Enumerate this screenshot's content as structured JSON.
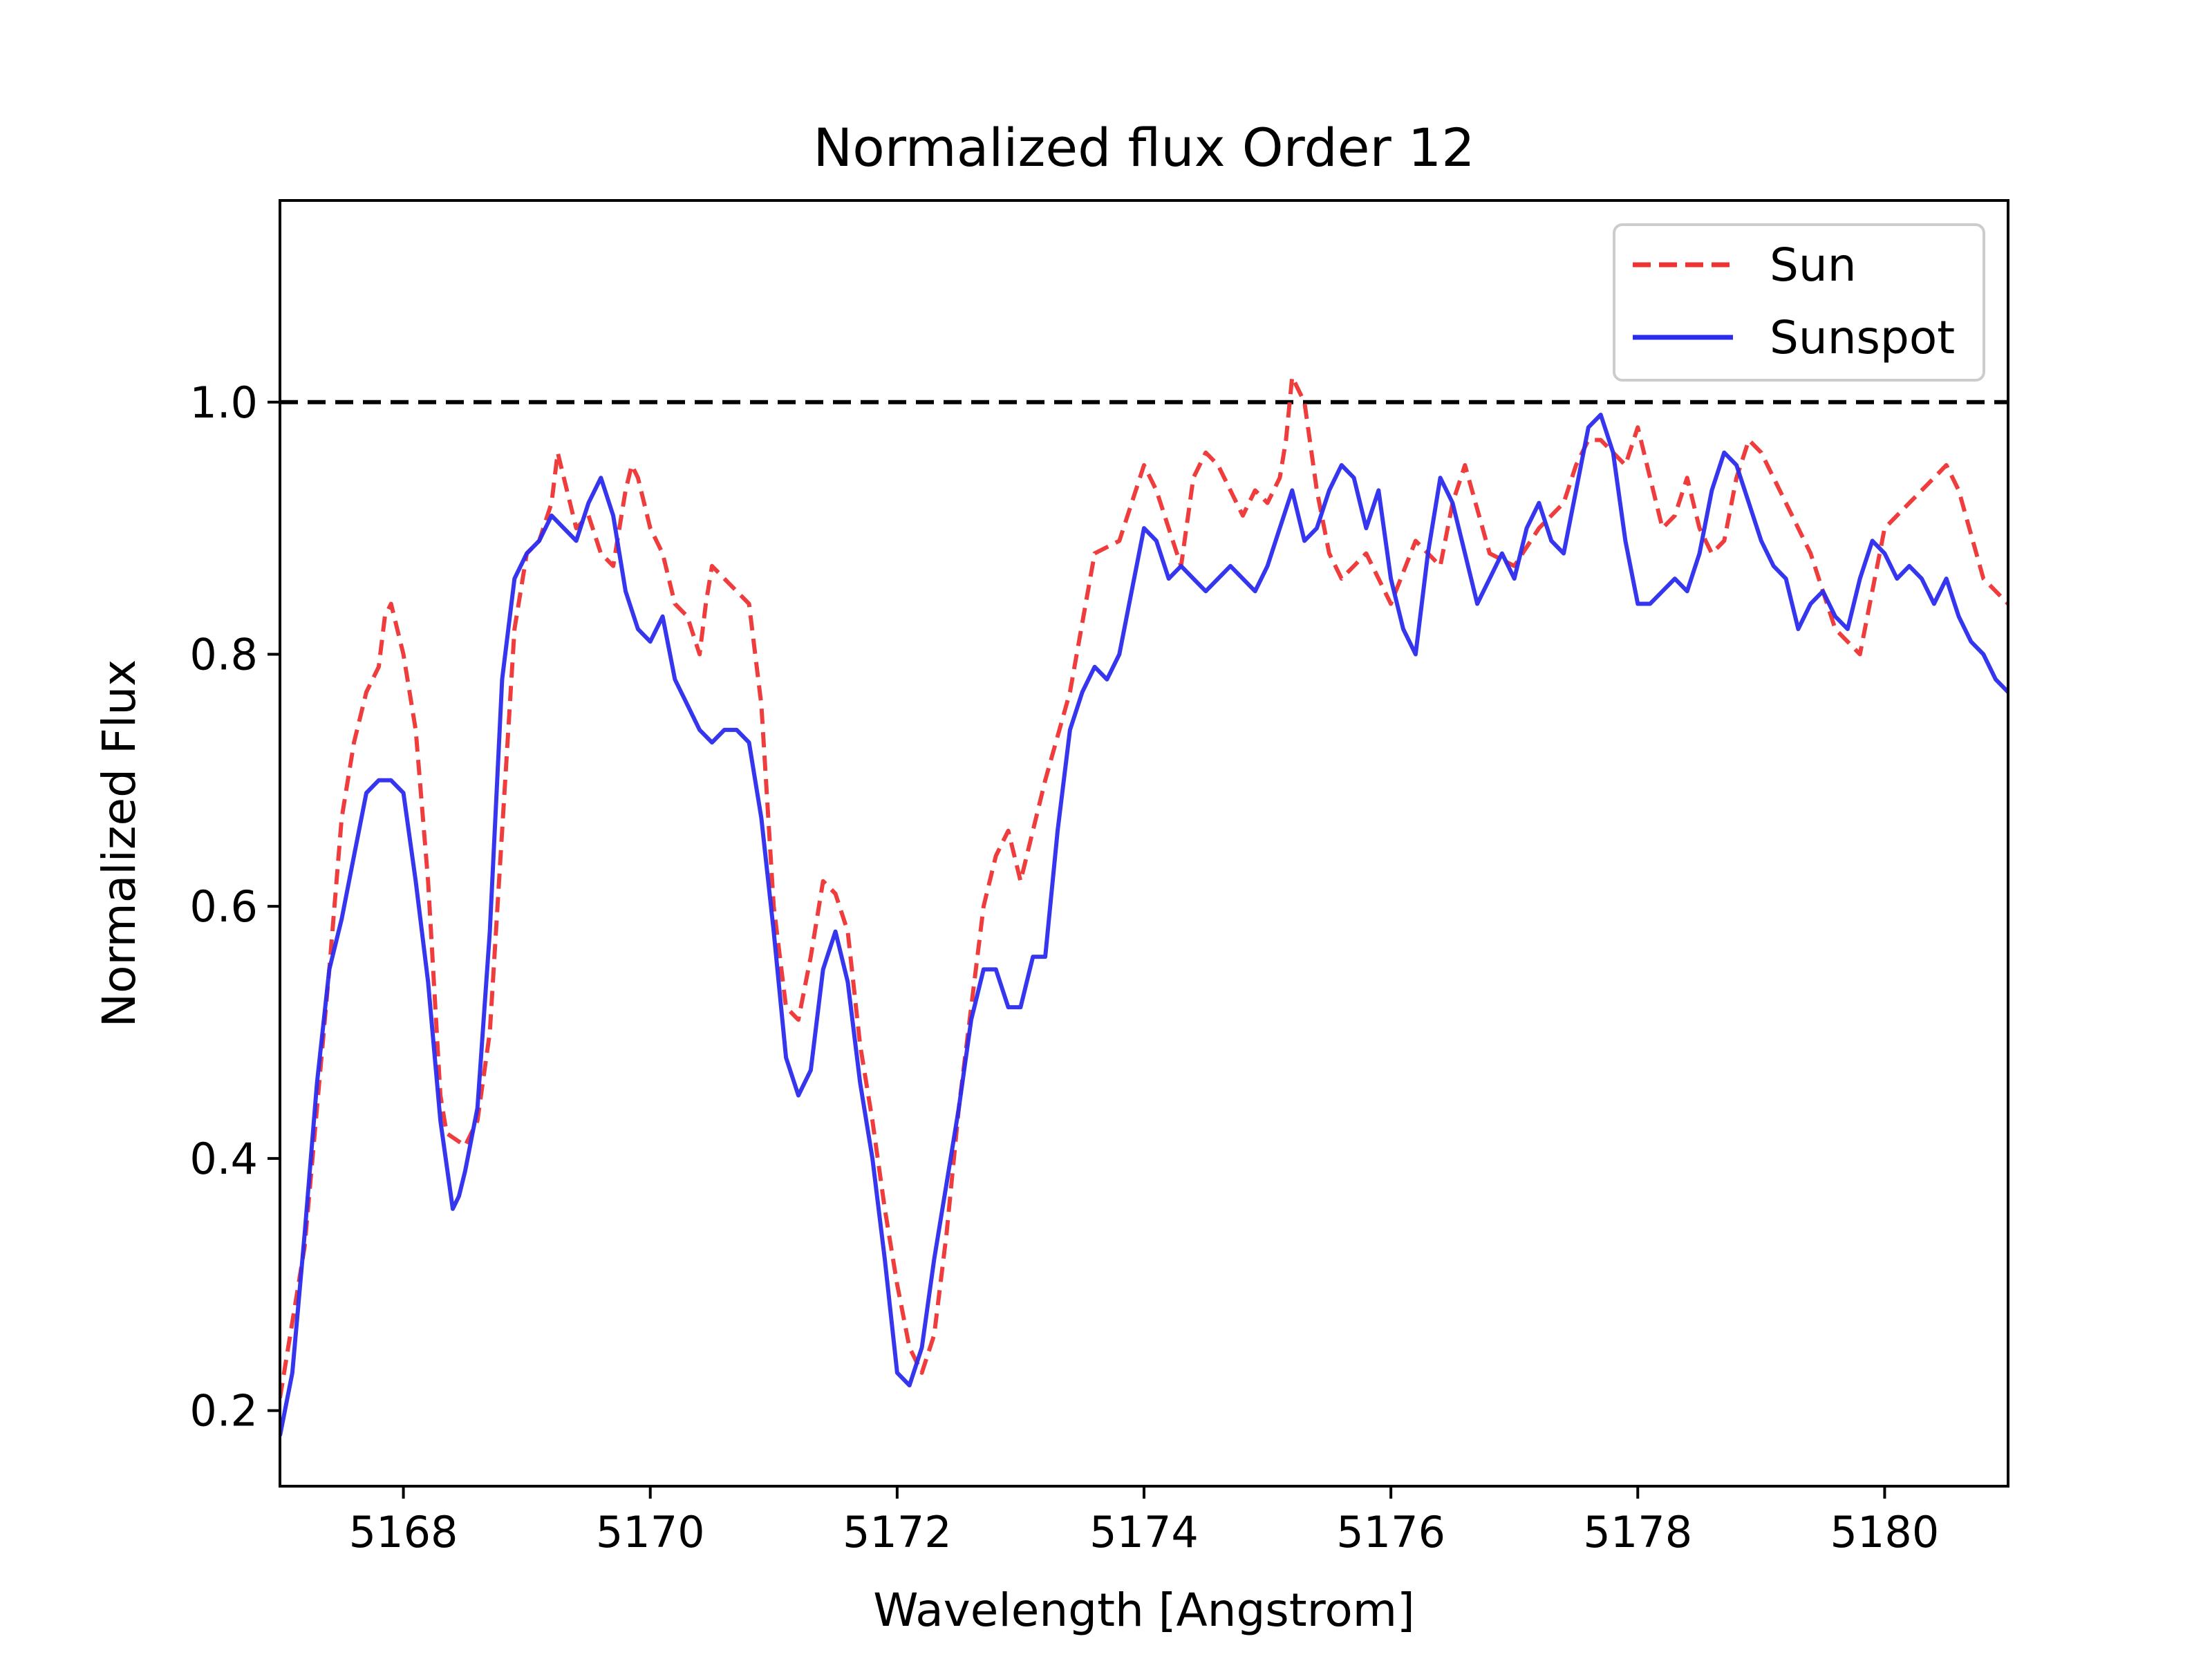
{
  "chart_data": {
    "type": "line",
    "title": "Normalized flux Order 12",
    "xlabel": "Wavelength [Angstrom]",
    "ylabel": "Normalized Flux",
    "xlim": [
      5167.0,
      5181.0
    ],
    "ylim": [
      0.14,
      1.16
    ],
    "xticks": [
      5168,
      5170,
      5172,
      5174,
      5176,
      5178,
      5180
    ],
    "yticks": [
      0.2,
      0.4,
      0.6,
      0.8,
      1.0
    ],
    "xtick_labels": [
      "5168",
      "5170",
      "5172",
      "5174",
      "5176",
      "5178",
      "5180"
    ],
    "ytick_labels": [
      "0.2",
      "0.4",
      "0.6",
      "0.8",
      "1.0"
    ],
    "grid": false,
    "legend_position": "top-right",
    "reference_line": {
      "y": 1.0,
      "color": "#000000",
      "style": "dashed"
    },
    "series": [
      {
        "name": "Sun",
        "color": "#ee3333",
        "style": "dashed",
        "x": [
          5167.0,
          5167.2,
          5167.4,
          5167.5,
          5167.6,
          5167.7,
          5167.8,
          5167.85,
          5167.9,
          5168.0,
          5168.1,
          5168.2,
          5168.3,
          5168.35,
          5168.5,
          5168.6,
          5168.7,
          5168.8,
          5168.9,
          5169.0,
          5169.1,
          5169.2,
          5169.25,
          5169.3,
          5169.4,
          5169.5,
          5169.6,
          5169.7,
          5169.8,
          5169.85,
          5169.9,
          5170.0,
          5170.1,
          5170.2,
          5170.3,
          5170.4,
          5170.45,
          5170.5,
          5170.6,
          5170.7,
          5170.8,
          5170.9,
          5171.0,
          5171.1,
          5171.2,
          5171.3,
          5171.4,
          5171.5,
          5171.6,
          5171.7,
          5171.8,
          5171.9,
          5172.0,
          5172.1,
          5172.2,
          5172.3,
          5172.4,
          5172.5,
          5172.6,
          5172.7,
          5172.8,
          5172.9,
          5173.0,
          5173.2,
          5173.4,
          5173.6,
          5173.8,
          5174.0,
          5174.1,
          5174.2,
          5174.3,
          5174.4,
          5174.5,
          5174.6,
          5174.7,
          5174.8,
          5174.9,
          5175.0,
          5175.1,
          5175.15,
          5175.2,
          5175.3,
          5175.4,
          5175.5,
          5175.6,
          5175.7,
          5175.8,
          5176.0,
          5176.2,
          5176.4,
          5176.5,
          5176.6,
          5176.8,
          5177.0,
          5177.2,
          5177.4,
          5177.5,
          5177.6,
          5177.7,
          5177.8,
          5177.9,
          5178.0,
          5178.1,
          5178.2,
          5178.3,
          5178.4,
          5178.5,
          5178.6,
          5178.7,
          5178.8,
          5178.9,
          5179.0,
          5179.2,
          5179.4,
          5179.6,
          5179.8,
          5180.0,
          5180.2,
          5180.4,
          5180.5,
          5180.6,
          5180.8,
          5181.0
        ],
        "values": [
          0.21,
          0.33,
          0.55,
          0.67,
          0.73,
          0.77,
          0.79,
          0.83,
          0.84,
          0.8,
          0.74,
          0.62,
          0.45,
          0.42,
          0.41,
          0.43,
          0.5,
          0.66,
          0.82,
          0.88,
          0.89,
          0.92,
          0.96,
          0.94,
          0.9,
          0.91,
          0.88,
          0.87,
          0.93,
          0.95,
          0.94,
          0.9,
          0.88,
          0.84,
          0.83,
          0.8,
          0.84,
          0.87,
          0.86,
          0.85,
          0.84,
          0.76,
          0.6,
          0.52,
          0.51,
          0.56,
          0.62,
          0.61,
          0.58,
          0.49,
          0.43,
          0.36,
          0.3,
          0.25,
          0.23,
          0.26,
          0.34,
          0.44,
          0.52,
          0.6,
          0.64,
          0.66,
          0.62,
          0.7,
          0.77,
          0.88,
          0.89,
          0.95,
          0.93,
          0.9,
          0.87,
          0.94,
          0.96,
          0.95,
          0.93,
          0.91,
          0.93,
          0.92,
          0.94,
          0.97,
          1.02,
          1.0,
          0.93,
          0.88,
          0.86,
          0.87,
          0.88,
          0.84,
          0.89,
          0.87,
          0.92,
          0.95,
          0.88,
          0.87,
          0.9,
          0.92,
          0.95,
          0.97,
          0.97,
          0.96,
          0.95,
          0.98,
          0.94,
          0.9,
          0.91,
          0.94,
          0.9,
          0.88,
          0.89,
          0.94,
          0.97,
          0.96,
          0.92,
          0.88,
          0.82,
          0.8,
          0.9,
          0.92,
          0.94,
          0.95,
          0.93,
          0.86,
          0.84
        ]
      },
      {
        "name": "Sunspot",
        "color": "#2b2bee",
        "style": "solid",
        "x": [
          5167.0,
          5167.1,
          5167.2,
          5167.3,
          5167.4,
          5167.5,
          5167.6,
          5167.7,
          5167.8,
          5167.9,
          5168.0,
          5168.1,
          5168.2,
          5168.3,
          5168.4,
          5168.45,
          5168.5,
          5168.6,
          5168.7,
          5168.8,
          5168.9,
          5169.0,
          5169.1,
          5169.2,
          5169.3,
          5169.4,
          5169.5,
          5169.6,
          5169.7,
          5169.8,
          5169.9,
          5170.0,
          5170.1,
          5170.2,
          5170.3,
          5170.4,
          5170.5,
          5170.6,
          5170.7,
          5170.8,
          5170.9,
          5171.0,
          5171.1,
          5171.2,
          5171.3,
          5171.4,
          5171.5,
          5171.6,
          5171.7,
          5171.8,
          5171.9,
          5172.0,
          5172.1,
          5172.2,
          5172.3,
          5172.4,
          5172.5,
          5172.6,
          5172.7,
          5172.8,
          5172.9,
          5173.0,
          5173.1,
          5173.2,
          5173.3,
          5173.4,
          5173.5,
          5173.6,
          5173.7,
          5173.8,
          5173.9,
          5174.0,
          5174.1,
          5174.2,
          5174.3,
          5174.4,
          5174.5,
          5174.6,
          5174.7,
          5174.8,
          5174.9,
          5175.0,
          5175.1,
          5175.2,
          5175.3,
          5175.4,
          5175.5,
          5175.6,
          5175.7,
          5175.8,
          5175.9,
          5176.0,
          5176.1,
          5176.2,
          5176.3,
          5176.4,
          5176.5,
          5176.6,
          5176.7,
          5176.8,
          5176.9,
          5177.0,
          5177.1,
          5177.2,
          5177.3,
          5177.4,
          5177.5,
          5177.6,
          5177.7,
          5177.8,
          5177.9,
          5178.0,
          5178.1,
          5178.2,
          5178.3,
          5178.4,
          5178.5,
          5178.6,
          5178.7,
          5178.8,
          5178.9,
          5179.0,
          5179.1,
          5179.2,
          5179.3,
          5179.4,
          5179.5,
          5179.6,
          5179.7,
          5179.8,
          5179.9,
          5180.0,
          5180.1,
          5180.2,
          5180.3,
          5180.4,
          5180.5,
          5180.6,
          5180.7,
          5180.8,
          5180.9,
          5181.0
        ],
        "values": [
          0.18,
          0.23,
          0.34,
          0.46,
          0.55,
          0.59,
          0.64,
          0.69,
          0.7,
          0.7,
          0.69,
          0.62,
          0.54,
          0.43,
          0.36,
          0.37,
          0.39,
          0.44,
          0.58,
          0.78,
          0.86,
          0.88,
          0.89,
          0.91,
          0.9,
          0.89,
          0.92,
          0.94,
          0.91,
          0.85,
          0.82,
          0.81,
          0.83,
          0.78,
          0.76,
          0.74,
          0.73,
          0.74,
          0.74,
          0.73,
          0.67,
          0.58,
          0.48,
          0.45,
          0.47,
          0.55,
          0.58,
          0.54,
          0.46,
          0.4,
          0.32,
          0.23,
          0.22,
          0.25,
          0.32,
          0.38,
          0.44,
          0.51,
          0.55,
          0.55,
          0.52,
          0.52,
          0.56,
          0.56,
          0.66,
          0.74,
          0.77,
          0.79,
          0.78,
          0.8,
          0.85,
          0.9,
          0.89,
          0.86,
          0.87,
          0.86,
          0.85,
          0.86,
          0.87,
          0.86,
          0.85,
          0.87,
          0.9,
          0.93,
          0.89,
          0.9,
          0.93,
          0.95,
          0.94,
          0.9,
          0.93,
          0.86,
          0.82,
          0.8,
          0.88,
          0.94,
          0.92,
          0.88,
          0.84,
          0.86,
          0.88,
          0.86,
          0.9,
          0.92,
          0.89,
          0.88,
          0.93,
          0.98,
          0.99,
          0.96,
          0.89,
          0.84,
          0.84,
          0.85,
          0.86,
          0.85,
          0.88,
          0.93,
          0.96,
          0.95,
          0.92,
          0.89,
          0.87,
          0.86,
          0.82,
          0.84,
          0.85,
          0.83,
          0.82,
          0.86,
          0.89,
          0.88,
          0.86,
          0.87,
          0.86,
          0.84,
          0.86,
          0.83,
          0.81,
          0.8,
          0.78,
          0.77
        ]
      }
    ]
  }
}
